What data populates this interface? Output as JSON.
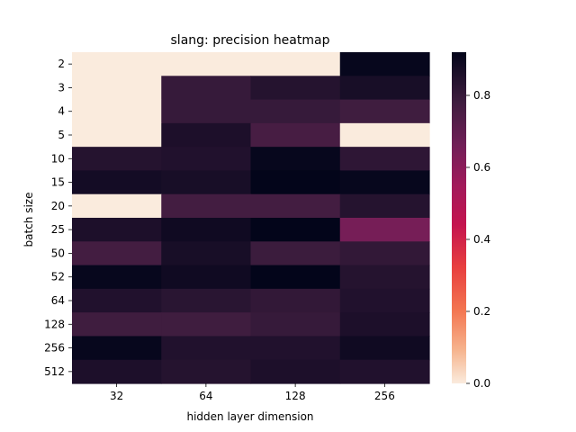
{
  "chart_data": {
    "type": "heatmap",
    "title": "slang: precision heatmap",
    "xlabel": "hidden layer dimension",
    "ylabel": "batch size",
    "x_categories": [
      "32",
      "64",
      "128",
      "256"
    ],
    "y_categories": [
      "2",
      "3",
      "4",
      "5",
      "10",
      "15",
      "20",
      "25",
      "50",
      "52",
      "64",
      "128",
      "256",
      "512"
    ],
    "values": [
      [
        0.0,
        0.0,
        0.0,
        0.91
      ],
      [
        0.0,
        0.8,
        0.84,
        0.87
      ],
      [
        0.0,
        0.8,
        0.8,
        0.78
      ],
      [
        0.0,
        0.86,
        0.76,
        0.0
      ],
      [
        0.84,
        0.85,
        0.91,
        0.82
      ],
      [
        0.88,
        0.87,
        0.92,
        0.91
      ],
      [
        0.0,
        0.77,
        0.77,
        0.84
      ],
      [
        0.86,
        0.89,
        0.92,
        0.65
      ],
      [
        0.77,
        0.87,
        0.79,
        0.81
      ],
      [
        0.91,
        0.89,
        0.92,
        0.84
      ],
      [
        0.85,
        0.83,
        0.81,
        0.85
      ],
      [
        0.78,
        0.78,
        0.8,
        0.86
      ],
      [
        0.91,
        0.85,
        0.85,
        0.89
      ],
      [
        0.86,
        0.84,
        0.86,
        0.85
      ]
    ],
    "colorbar": {
      "range": [
        0.0,
        0.92
      ],
      "ticks": [
        "0.0",
        "0.2",
        "0.4",
        "0.6",
        "0.8"
      ],
      "tick_values": [
        0.0,
        0.2,
        0.4,
        0.6,
        0.8
      ],
      "colormap": "rocket"
    },
    "grid": false
  }
}
